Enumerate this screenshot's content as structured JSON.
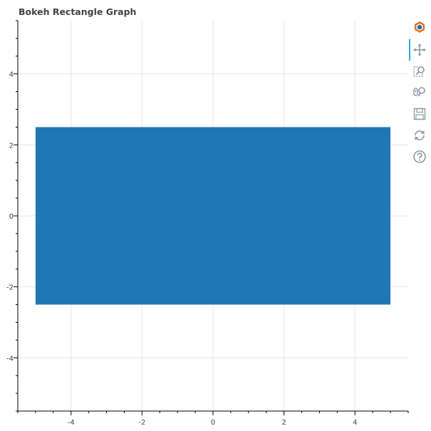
{
  "title": "Bokeh Rectangle Graph",
  "toolbar": {
    "tools": [
      {
        "name": "bokeh-logo-icon",
        "interactable": true
      },
      {
        "name": "pan-tool-icon",
        "interactable": true,
        "active": true
      },
      {
        "name": "box-zoom-tool-icon",
        "interactable": true
      },
      {
        "name": "wheel-zoom-tool-icon",
        "interactable": true
      },
      {
        "name": "save-tool-icon",
        "interactable": true
      },
      {
        "name": "reset-tool-icon",
        "interactable": true
      },
      {
        "name": "help-tool-icon",
        "interactable": true
      }
    ],
    "accent": "#26aae1"
  },
  "chart_data": {
    "type": "rect",
    "title": "Bokeh Rectangle Graph",
    "xlabel": "",
    "ylabel": "",
    "xlim": [
      -5.5,
      5.5
    ],
    "ylim": [
      -5.5,
      5.5
    ],
    "x_ticks": [
      -4,
      -2,
      0,
      2,
      4
    ],
    "y_ticks": [
      -4,
      -2,
      0,
      2,
      4
    ],
    "x_tick_labels": [
      "-4",
      "-2",
      "0",
      "2",
      "4"
    ],
    "y_tick_labels": [
      "-4",
      "-2",
      "0",
      "2",
      "4"
    ],
    "grid": true,
    "rects": [
      {
        "x": 0,
        "y": 0,
        "width": 10,
        "height": 5,
        "color": "#1f77b4"
      }
    ]
  }
}
